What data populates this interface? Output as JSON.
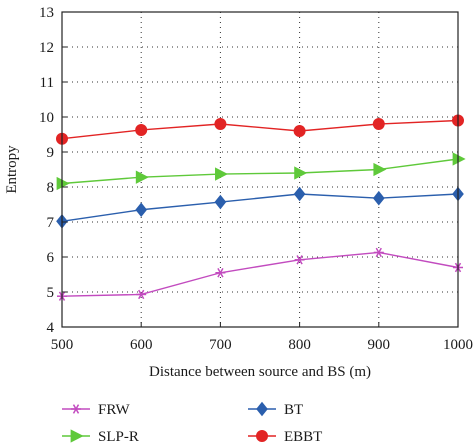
{
  "chart_data": {
    "type": "line",
    "xlabel": "Distance between source and BS (m)",
    "ylabel": "Entropy",
    "x": [
      500,
      600,
      700,
      800,
      900,
      1000
    ],
    "xlim": [
      500,
      1000
    ],
    "ylim": [
      4,
      13
    ],
    "xticks": [
      "500",
      "600",
      "700",
      "800",
      "900",
      "1000"
    ],
    "yticks": [
      "4",
      "5",
      "6",
      "7",
      "8",
      "9",
      "10",
      "11",
      "12",
      "13"
    ],
    "grid": true,
    "legend_position": "bottom",
    "series": [
      {
        "name": "FRW",
        "color": "#c24bbf",
        "marker": "asterisk",
        "values": [
          4.88,
          4.93,
          5.55,
          5.92,
          6.13,
          5.7
        ]
      },
      {
        "name": "SLP-R",
        "color": "#5fc93a",
        "marker": "triangle",
        "values": [
          8.1,
          8.28,
          8.37,
          8.4,
          8.5,
          8.8
        ]
      },
      {
        "name": "BT",
        "color": "#2b5fad",
        "marker": "diamond",
        "values": [
          7.02,
          7.35,
          7.57,
          7.8,
          7.68,
          7.8
        ]
      },
      {
        "name": "EBBT",
        "color": "#e22424",
        "marker": "circle",
        "values": [
          9.38,
          9.63,
          9.8,
          9.6,
          9.8,
          9.9
        ]
      }
    ]
  }
}
